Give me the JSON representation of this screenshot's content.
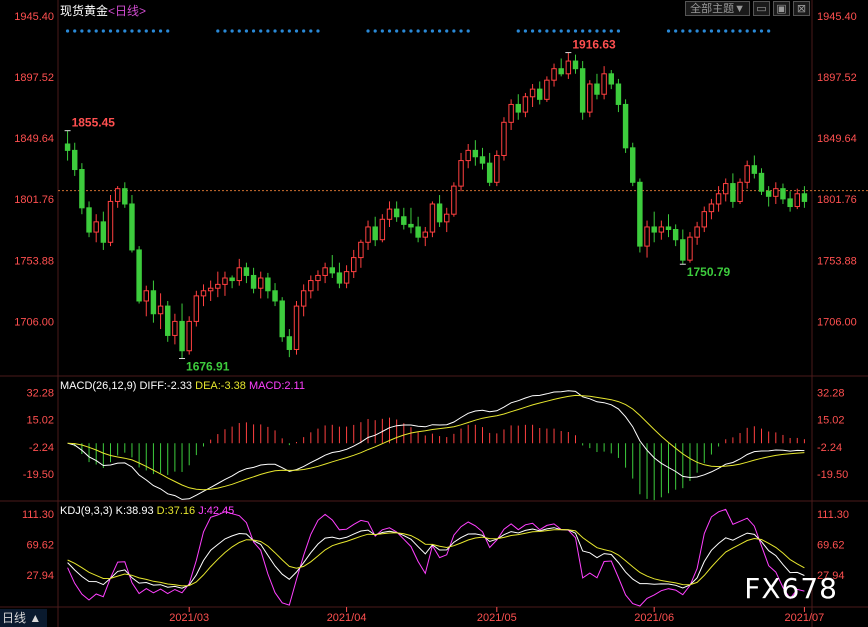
{
  "title": {
    "main": "现货黄金",
    "sub": "<日线>"
  },
  "toolbar": {
    "theme_label": "全部主题▼",
    "min_label": "▭",
    "max_label": "▣",
    "close_label": "⊠"
  },
  "watermark": "FX678",
  "bottom_tab": "日线 ▲",
  "colors": {
    "up": "#ff4040",
    "down": "#3dcc3d",
    "axis_red": "#ff5050",
    "grid": "#4a1a1a"
  },
  "chart_data": [
    {
      "type": "candlestick",
      "title": "现货黄金<日线>",
      "y_ticks": [
        1706.0,
        1753.88,
        1801.76,
        1849.64,
        1897.52,
        1945.4
      ],
      "ylim": [
        1664,
        1950
      ],
      "x_ticks": [
        "2021/03",
        "2021/04",
        "2021/05",
        "2021/06",
        "2021/07"
      ],
      "current_price_line": 1808.5,
      "annotations": [
        {
          "label": "1855.45",
          "value": 1855.45,
          "color": "#ff5050"
        },
        {
          "label": "1676.91",
          "value": 1676.91,
          "color": "#3dcc3d"
        },
        {
          "label": "1916.63",
          "value": 1916.63,
          "color": "#ff5050"
        },
        {
          "label": "1750.79",
          "value": 1750.79,
          "color": "#3dcc3d"
        }
      ],
      "ohlc": [
        [
          1845,
          1855.45,
          1832,
          1840
        ],
        [
          1840,
          1846,
          1820,
          1825
        ],
        [
          1825,
          1830,
          1790,
          1795
        ],
        [
          1795,
          1800,
          1772,
          1776
        ],
        [
          1776,
          1790,
          1768,
          1784
        ],
        [
          1784,
          1792,
          1762,
          1768
        ],
        [
          1768,
          1805,
          1765,
          1800
        ],
        [
          1800,
          1812,
          1795,
          1810
        ],
        [
          1810,
          1815,
          1795,
          1798
        ],
        [
          1798,
          1805,
          1760,
          1762
        ],
        [
          1762,
          1765,
          1720,
          1722
        ],
        [
          1722,
          1734,
          1710,
          1730
        ],
        [
          1730,
          1738,
          1705,
          1712
        ],
        [
          1712,
          1728,
          1700,
          1718
        ],
        [
          1718,
          1722,
          1690,
          1695
        ],
        [
          1695,
          1712,
          1688,
          1706
        ],
        [
          1706,
          1720,
          1676.91,
          1683
        ],
        [
          1683,
          1710,
          1680,
          1706
        ],
        [
          1706,
          1730,
          1702,
          1726
        ],
        [
          1726,
          1735,
          1718,
          1730
        ],
        [
          1730,
          1738,
          1722,
          1732
        ],
        [
          1732,
          1745,
          1725,
          1735
        ],
        [
          1735,
          1745,
          1726,
          1740
        ],
        [
          1740,
          1742,
          1732,
          1738
        ],
        [
          1738,
          1755,
          1734,
          1748
        ],
        [
          1748,
          1752,
          1736,
          1742
        ],
        [
          1742,
          1748,
          1728,
          1732
        ],
        [
          1732,
          1745,
          1724,
          1740
        ],
        [
          1740,
          1744,
          1724,
          1730
        ],
        [
          1730,
          1736,
          1718,
          1722
        ],
        [
          1722,
          1725,
          1690,
          1694
        ],
        [
          1694,
          1700,
          1678,
          1684
        ],
        [
          1684,
          1722,
          1680,
          1718
        ],
        [
          1718,
          1735,
          1710,
          1730
        ],
        [
          1730,
          1742,
          1724,
          1738
        ],
        [
          1738,
          1746,
          1730,
          1742
        ],
        [
          1742,
          1752,
          1736,
          1748
        ],
        [
          1748,
          1758,
          1740,
          1744
        ],
        [
          1744,
          1752,
          1732,
          1736
        ],
        [
          1736,
          1750,
          1732,
          1745
        ],
        [
          1745,
          1762,
          1740,
          1756
        ],
        [
          1756,
          1770,
          1748,
          1768
        ],
        [
          1768,
          1785,
          1762,
          1780
        ],
        [
          1780,
          1788,
          1765,
          1770
        ],
        [
          1770,
          1790,
          1768,
          1786
        ],
        [
          1786,
          1800,
          1780,
          1794
        ],
        [
          1794,
          1800,
          1784,
          1788
        ],
        [
          1788,
          1795,
          1778,
          1782
        ],
        [
          1782,
          1795,
          1775,
          1780
        ],
        [
          1780,
          1788,
          1768,
          1772
        ],
        [
          1772,
          1780,
          1765,
          1776
        ],
        [
          1776,
          1800,
          1772,
          1798
        ],
        [
          1798,
          1805,
          1780,
          1784
        ],
        [
          1784,
          1795,
          1776,
          1790
        ],
        [
          1790,
          1815,
          1788,
          1812
        ],
        [
          1812,
          1838,
          1808,
          1832
        ],
        [
          1832,
          1845,
          1826,
          1840
        ],
        [
          1840,
          1848,
          1828,
          1835
        ],
        [
          1835,
          1842,
          1825,
          1830
        ],
        [
          1830,
          1838,
          1812,
          1815
        ],
        [
          1815,
          1840,
          1812,
          1836
        ],
        [
          1836,
          1866,
          1832,
          1862
        ],
        [
          1862,
          1880,
          1856,
          1876
        ],
        [
          1876,
          1884,
          1864,
          1870
        ],
        [
          1870,
          1885,
          1866,
          1882
        ],
        [
          1882,
          1892,
          1874,
          1888
        ],
        [
          1888,
          1894,
          1876,
          1880
        ],
        [
          1880,
          1898,
          1878,
          1895
        ],
        [
          1895,
          1908,
          1890,
          1904
        ],
        [
          1904,
          1912,
          1898,
          1900
        ],
        [
          1900,
          1916.63,
          1896,
          1910
        ],
        [
          1910,
          1915,
          1900,
          1904
        ],
        [
          1904,
          1910,
          1864,
          1870
        ],
        [
          1870,
          1895,
          1866,
          1892
        ],
        [
          1892,
          1900,
          1880,
          1884
        ],
        [
          1884,
          1906,
          1880,
          1900
        ],
        [
          1900,
          1903,
          1888,
          1892
        ],
        [
          1892,
          1896,
          1870,
          1876
        ],
        [
          1876,
          1880,
          1838,
          1842
        ],
        [
          1842,
          1846,
          1812,
          1815
        ],
        [
          1815,
          1818,
          1760,
          1765
        ],
        [
          1765,
          1785,
          1756,
          1780
        ],
        [
          1780,
          1792,
          1768,
          1776
        ],
        [
          1776,
          1785,
          1770,
          1780
        ],
        [
          1780,
          1790,
          1772,
          1778
        ],
        [
          1778,
          1782,
          1765,
          1770
        ],
        [
          1770,
          1778,
          1750.79,
          1754
        ],
        [
          1754,
          1776,
          1752,
          1772
        ],
        [
          1772,
          1784,
          1766,
          1780
        ],
        [
          1780,
          1796,
          1776,
          1792
        ],
        [
          1792,
          1802,
          1786,
          1798
        ],
        [
          1798,
          1812,
          1792,
          1806
        ],
        [
          1806,
          1818,
          1800,
          1814
        ],
        [
          1814,
          1822,
          1795,
          1800
        ],
        [
          1800,
          1818,
          1798,
          1815
        ],
        [
          1815,
          1832,
          1810,
          1828
        ],
        [
          1828,
          1836,
          1818,
          1822
        ],
        [
          1822,
          1826,
          1805,
          1808
        ],
        [
          1808,
          1812,
          1796,
          1804
        ],
        [
          1804,
          1815,
          1798,
          1810
        ],
        [
          1810,
          1814,
          1798,
          1802
        ],
        [
          1802,
          1808,
          1792,
          1796
        ],
        [
          1796,
          1810,
          1794,
          1806
        ],
        [
          1806,
          1812,
          1795,
          1800
        ]
      ]
    },
    {
      "type": "macd",
      "label": "MACD(26,12,9)",
      "readout": {
        "diff_label": "DIFF:-2.33",
        "dea_label": "DEA:-3.38",
        "macd_label": "MACD:2.11"
      },
      "colors": {
        "diff": "#ffffff",
        "dea": "#e6e62e",
        "macd": "#ff40ff"
      },
      "y_ticks": [
        32.28,
        15.02,
        -2.24,
        -19.5
      ],
      "ylim": [
        -36,
        42
      ]
    },
    {
      "type": "kdj",
      "label": "KDJ(9,3,3)",
      "readout": {
        "k_label": "K:38.93",
        "d_label": "D:37.16",
        "j_label": "J:42.45"
      },
      "colors": {
        "k": "#ffffff",
        "d": "#e6e62e",
        "j": "#ff40ff"
      },
      "y_ticks": [
        111.3,
        69.62,
        27.94
      ],
      "ylim": [
        -15,
        128
      ]
    }
  ]
}
